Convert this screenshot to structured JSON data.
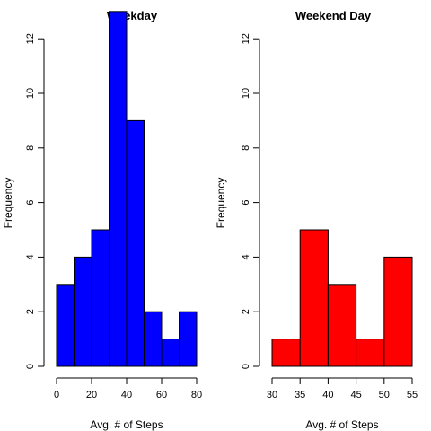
{
  "chart_data": [
    {
      "type": "bar",
      "title": "Weekday",
      "xlabel": "Avg. # of Steps",
      "ylabel": "Frequency",
      "color": "#0000ff",
      "xlim": [
        0,
        80
      ],
      "ylim": [
        0,
        12.5
      ],
      "xticks": [
        0,
        20,
        40,
        60,
        80
      ],
      "yticks": [
        0,
        2,
        4,
        6,
        8,
        10,
        12
      ],
      "bins": [
        {
          "start": 0,
          "end": 10,
          "count": 3
        },
        {
          "start": 10,
          "end": 20,
          "count": 4
        },
        {
          "start": 20,
          "end": 30,
          "count": 5
        },
        {
          "start": 30,
          "end": 40,
          "count": 13
        },
        {
          "start": 40,
          "end": 50,
          "count": 9
        },
        {
          "start": 50,
          "end": 60,
          "count": 2
        },
        {
          "start": 60,
          "end": 70,
          "count": 1
        },
        {
          "start": 70,
          "end": 80,
          "count": 2
        }
      ]
    },
    {
      "type": "bar",
      "title": "Weekend Day",
      "xlabel": "Avg. # of Steps",
      "ylabel": "Frequency",
      "color": "#ff0000",
      "xlim": [
        30,
        55
      ],
      "ylim": [
        0,
        12.5
      ],
      "xticks": [
        30,
        35,
        40,
        45,
        50,
        55
      ],
      "yticks": [
        0,
        2,
        4,
        6,
        8,
        10,
        12
      ],
      "bins": [
        {
          "start": 30,
          "end": 35,
          "count": 1
        },
        {
          "start": 35,
          "end": 40,
          "count": 5
        },
        {
          "start": 40,
          "end": 45,
          "count": 3
        },
        {
          "start": 45,
          "end": 50,
          "count": 1
        },
        {
          "start": 50,
          "end": 55,
          "count": 4
        }
      ]
    }
  ]
}
